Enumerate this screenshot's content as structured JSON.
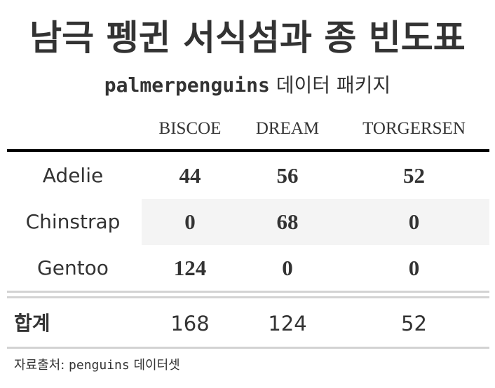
{
  "title": "남극 펭귄 서식섬과 종 빈도표",
  "subtitle": {
    "code": "palmerpenguins",
    "text": " 데이터 패키지"
  },
  "columns": [
    "BISCOE",
    "DREAM",
    "TORGERSEN"
  ],
  "rows": [
    {
      "label": "Adelie",
      "values": [
        "44",
        "56",
        "52"
      ]
    },
    {
      "label": "Chinstrap",
      "values": [
        "0",
        "68",
        "0"
      ]
    },
    {
      "label": "Gentoo",
      "values": [
        "124",
        "0",
        "0"
      ]
    }
  ],
  "total": {
    "label": "합계",
    "values": [
      "168",
      "124",
      "52"
    ]
  },
  "source": {
    "prefix": "자료출처: ",
    "code": "penguins",
    "suffix": " 데이터셋"
  },
  "colors": {
    "text": "#333333",
    "top_rule": "#000000",
    "light_rule": "#d3d3d3",
    "stripe": "#f4f4f4"
  }
}
